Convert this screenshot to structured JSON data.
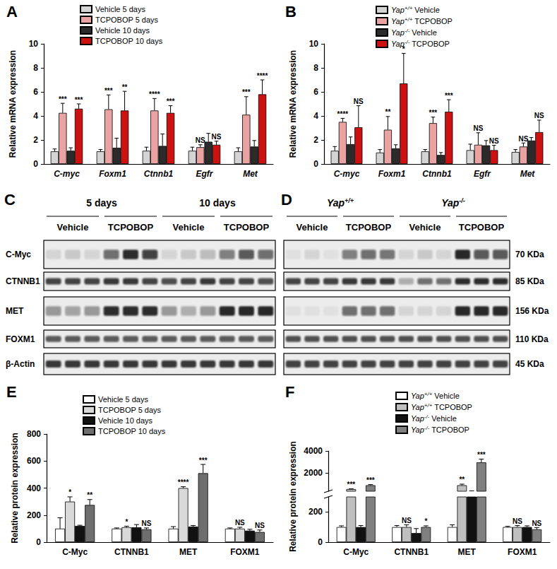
{
  "chart_data": [
    {
      "type": "bar",
      "title": "A",
      "ylabel": "Relative mRNA expression",
      "categories": [
        "C-myc",
        "Foxm1",
        "Ctnnb1",
        "Egfr",
        "Met"
      ],
      "ylim": [
        0,
        10
      ],
      "yticks": [
        0,
        2,
        4,
        6,
        8,
        10
      ],
      "grid": false,
      "legend": "top",
      "series": [
        {
          "name": "Vehicle 5 days",
          "color": "#d4d4d4",
          "values": [
            1.05,
            1.05,
            1.1,
            1.1,
            1.05
          ],
          "errors": [
            0.2,
            0.15,
            0.3,
            0.3,
            0.3
          ],
          "significance": [
            null,
            null,
            null,
            null,
            null
          ]
        },
        {
          "name": "TCPOBOP 5 days",
          "color": "#e9a3a3",
          "values": [
            4.25,
            4.55,
            4.45,
            1.4,
            4.1
          ],
          "errors": [
            0.8,
            1.2,
            1.0,
            0.2,
            1.5
          ],
          "significance": [
            "***",
            "***",
            "****",
            "NS",
            "***"
          ]
        },
        {
          "name": "Vehicle 10 days",
          "color": "#2b2b2b",
          "values": [
            1.1,
            1.35,
            1.5,
            1.85,
            1.45
          ],
          "errors": [
            0.25,
            0.8,
            1.0,
            0.7,
            0.5
          ],
          "significance": [
            null,
            null,
            null,
            null,
            null
          ]
        },
        {
          "name": "TCPOBOP 10 days",
          "color": "#cc1111",
          "values": [
            4.6,
            4.45,
            4.25,
            1.6,
            5.8
          ],
          "errors": [
            0.4,
            1.6,
            0.6,
            0.3,
            1.2
          ],
          "significance": [
            "***",
            "**",
            "***",
            "NS",
            "****"
          ]
        }
      ]
    },
    {
      "type": "bar",
      "title": "B",
      "ylabel": "Relative mRNA expression",
      "categories": [
        "C-myc",
        "Foxm1",
        "Ctnnb1",
        "Egfr",
        "Met"
      ],
      "ylim": [
        0,
        10
      ],
      "yticks": [
        0,
        2,
        4,
        6,
        8,
        10
      ],
      "grid": false,
      "legend": "top",
      "series": [
        {
          "name": "Yap+/+ Vehicle",
          "color": "#d4d4d4",
          "values": [
            1.1,
            0.95,
            1.05,
            1.15,
            1.0
          ],
          "errors": [
            0.35,
            0.25,
            0.15,
            0.5,
            0.2
          ],
          "significance": [
            null,
            null,
            null,
            null,
            null
          ]
        },
        {
          "name": "Yap+/+ TCPOBOP",
          "color": "#e9a3a3",
          "values": [
            3.5,
            2.85,
            3.4,
            1.6,
            1.45
          ],
          "errors": [
            0.3,
            1.1,
            0.5,
            1.0,
            0.3
          ],
          "significance": [
            "****",
            "**",
            "***",
            "NS",
            "NS"
          ]
        },
        {
          "name": "Yap-/- Vehicle",
          "color": "#2b2b2b",
          "values": [
            1.65,
            1.3,
            0.75,
            1.55,
            1.95
          ],
          "errors": [
            0.6,
            0.3,
            0.2,
            0.4,
            0.25
          ],
          "significance": [
            null,
            null,
            null,
            null,
            null
          ]
        },
        {
          "name": "Yap-/- TCPOBOP",
          "color": "#cc1111",
          "values": [
            3.05,
            6.7,
            4.35,
            1.15,
            2.65
          ],
          "errors": [
            1.8,
            2.5,
            1.0,
            0.4,
            1.0
          ],
          "significance": [
            "NS",
            "*",
            "***",
            "NS",
            "NS"
          ]
        }
      ]
    },
    {
      "type": "bar",
      "title": "E",
      "ylabel": "Relative protein expression",
      "categories": [
        "C-Myc",
        "CTNNB1",
        "MET",
        "FOXM1"
      ],
      "ylim": [
        0,
        800
      ],
      "yticks": [
        0,
        200,
        400,
        600,
        800
      ],
      "grid": false,
      "legend": "top",
      "series": [
        {
          "name": "Vehicle 5 days",
          "color": "#ffffff",
          "values": [
            100,
            100,
            100,
            100
          ],
          "errors": [
            80,
            5,
            15,
            5
          ],
          "significance": [
            null,
            null,
            null,
            null
          ]
        },
        {
          "name": "TCPOBOP 5 days",
          "color": "#d9d9d9",
          "values": [
            300,
            110,
            400,
            100
          ],
          "errors": [
            35,
            8,
            10,
            10
          ],
          "significance": [
            "*",
            "*",
            "****",
            "NS"
          ]
        },
        {
          "name": "Vehicle 10 days",
          "color": "#111111",
          "values": [
            120,
            110,
            115,
            85
          ],
          "errors": [
            5,
            20,
            8,
            10
          ],
          "significance": [
            null,
            null,
            null,
            null
          ]
        },
        {
          "name": "TCPOBOP 10 days",
          "color": "#6e6e6e",
          "values": [
            275,
            95,
            510,
            75
          ],
          "errors": [
            40,
            10,
            65,
            15
          ],
          "significance": [
            "**",
            "NS",
            "***",
            "NS"
          ]
        }
      ]
    },
    {
      "type": "bar",
      "title": "F",
      "ylabel": "Relative protein expression",
      "categories": [
        "C-Myc",
        "CTNNB1",
        "MET",
        "FOXM1"
      ],
      "ylim": [
        0,
        4000
      ],
      "yticks": [
        0,
        200,
        2000,
        4000
      ],
      "ybreak": 300,
      "grid": false,
      "legend": "top",
      "series": [
        {
          "name": "Yap+/+ Vehicle",
          "color": "#ffffff",
          "values": [
            100,
            100,
            100,
            100
          ],
          "errors": [
            8,
            10,
            15,
            5
          ],
          "significance": [
            null,
            null,
            null,
            null
          ]
        },
        {
          "name": "Yap+/+ TCPOBOP",
          "color": "#bfbfbf",
          "values": [
            500,
            100,
            850,
            100
          ],
          "errors": [
            20,
            15,
            100,
            10
          ],
          "significance": [
            "***",
            "NS",
            "**",
            "NS"
          ]
        },
        {
          "name": "Yap-/- Vehicle",
          "color": "#111111",
          "values": [
            100,
            60,
            310,
            100
          ],
          "errors": [
            10,
            30,
            30,
            8
          ],
          "significance": [
            null,
            null,
            null,
            null
          ]
        },
        {
          "name": "Yap-/- TCPOBOP",
          "color": "#808080",
          "values": [
            850,
            100,
            2950,
            85
          ],
          "errors": [
            60,
            8,
            300,
            12
          ],
          "significance": [
            "***",
            "*",
            "***",
            "NS"
          ]
        }
      ]
    }
  ],
  "blots": [
    {
      "title": "C",
      "headers": [
        "5 days",
        "10 days"
      ],
      "lanes": [
        "Vehicle",
        "TCPOBOP",
        "Vehicle",
        "TCPOBOP"
      ],
      "rows": [
        {
          "label": "C-Myc",
          "intensity": [
            0.1,
            0.15,
            0.1,
            0.6,
            0.9,
            0.8,
            0.1,
            0.15,
            0.2,
            0.5,
            0.7,
            0.6
          ]
        },
        {
          "label": "CTNNB1",
          "intensity": [
            0.8,
            0.8,
            0.8,
            0.85,
            0.85,
            0.8,
            0.75,
            0.8,
            0.85,
            0.8,
            0.8,
            0.75
          ]
        },
        {
          "label": "MET",
          "intensity": [
            0.4,
            0.35,
            0.4,
            0.9,
            0.9,
            0.9,
            0.4,
            0.3,
            0.4,
            0.95,
            0.95,
            0.95
          ]
        },
        {
          "label": "FOXM1",
          "intensity": [
            0.7,
            0.7,
            0.7,
            0.7,
            0.7,
            0.7,
            0.7,
            0.7,
            0.7,
            0.7,
            0.7,
            0.7
          ]
        },
        {
          "label": "β-Actin",
          "intensity": [
            0.85,
            0.85,
            0.85,
            0.85,
            0.85,
            0.85,
            0.85,
            0.85,
            0.85,
            0.85,
            0.85,
            0.85
          ]
        }
      ]
    },
    {
      "title": "D",
      "headers": [
        "Yap+/+",
        "Yap-/-"
      ],
      "lanes": [
        "Vehicle",
        "TCPOBOP",
        "Vehicle",
        "TCPOBOP"
      ],
      "rows": [
        {
          "size": "70 KDa",
          "intensity": [
            0.05,
            0.1,
            0.05,
            0.5,
            0.6,
            0.55,
            0.1,
            0.15,
            0.1,
            0.95,
            0.7,
            0.7
          ]
        },
        {
          "size": "85 KDa",
          "intensity": [
            0.8,
            0.8,
            0.8,
            0.85,
            0.85,
            0.85,
            0.3,
            0.6,
            0.6,
            0.9,
            0.9,
            0.9
          ]
        },
        {
          "size": "156 KDa",
          "intensity": [
            0.05,
            0.05,
            0.05,
            0.6,
            0.6,
            0.6,
            0.1,
            0.1,
            0.1,
            0.95,
            0.95,
            0.95
          ]
        },
        {
          "size": "110 KDa",
          "intensity": [
            0.75,
            0.75,
            0.75,
            0.75,
            0.75,
            0.75,
            0.75,
            0.75,
            0.75,
            0.75,
            0.75,
            0.75
          ]
        },
        {
          "size": "45 KDa",
          "intensity": [
            0.8,
            0.8,
            0.8,
            0.8,
            0.8,
            0.8,
            0.8,
            0.8,
            0.8,
            0.8,
            0.8,
            0.8
          ]
        }
      ]
    }
  ]
}
